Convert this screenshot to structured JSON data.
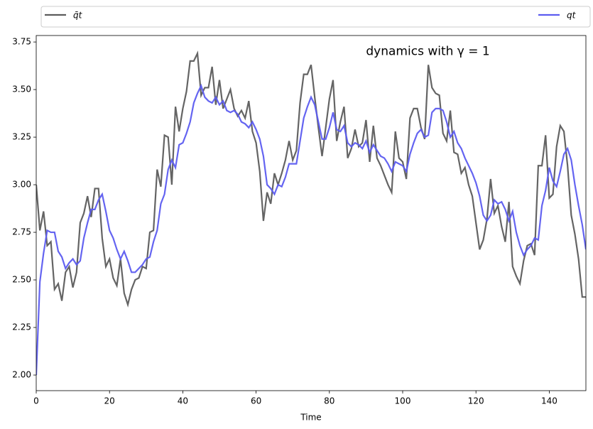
{
  "chart_data": {
    "type": "line",
    "annotation": {
      "text": "dynamics with γ = 1",
      "x": 90,
      "y": 3.7
    },
    "xlabel": "Time",
    "xlim": [
      0,
      150
    ],
    "ylim": [
      1.918,
      3.784
    ],
    "xticks": [
      0,
      20,
      40,
      60,
      80,
      100,
      120,
      140
    ],
    "yticks": [
      {
        "value": 2,
        "label": "2.00"
      },
      2.25,
      {
        "value": 2.5,
        "label": "2.50"
      },
      2.75,
      {
        "value": 3,
        "label": "3.00"
      },
      3.25,
      {
        "value": 3.5,
        "label": "3.50"
      },
      3.75
    ],
    "legend": "top-expand",
    "x": [
      0,
      1,
      2,
      3,
      4,
      5,
      6,
      7,
      8,
      9,
      10,
      11,
      12,
      13,
      14,
      15,
      16,
      17,
      18,
      19,
      20,
      21,
      22,
      23,
      24,
      25,
      26,
      27,
      28,
      29,
      30,
      31,
      32,
      33,
      34,
      35,
      36,
      37,
      38,
      39,
      40,
      41,
      42,
      43,
      44,
      45,
      46,
      47,
      48,
      49,
      50,
      51,
      52,
      53,
      54,
      55,
      56,
      57,
      58,
      59,
      60,
      61,
      62,
      63,
      64,
      65,
      66,
      67,
      68,
      69,
      70,
      71,
      72,
      73,
      74,
      75,
      76,
      77,
      78,
      79,
      80,
      81,
      82,
      83,
      84,
      85,
      86,
      87,
      88,
      89,
      90,
      91,
      92,
      93,
      94,
      95,
      96,
      97,
      98,
      99,
      100,
      101,
      102,
      103,
      104,
      105,
      106,
      107,
      108,
      109,
      110,
      111,
      112,
      113,
      114,
      115,
      116,
      117,
      118,
      119,
      120,
      121,
      122,
      123,
      124,
      125,
      126,
      127,
      128,
      129,
      130,
      131,
      132,
      133,
      134,
      135,
      136,
      137,
      138,
      139,
      140,
      141,
      142,
      143,
      144,
      145,
      146,
      147,
      148,
      149,
      150
    ],
    "series": [
      {
        "name": "q̄t",
        "color": "#5c5c5c",
        "values": [
          3.0,
          2.76,
          2.86,
          2.68,
          2.7,
          2.45,
          2.48,
          2.39,
          2.54,
          2.57,
          2.46,
          2.54,
          2.8,
          2.85,
          2.94,
          2.83,
          2.98,
          2.98,
          2.72,
          2.57,
          2.61,
          2.51,
          2.47,
          2.61,
          2.43,
          2.37,
          2.45,
          2.5,
          2.51,
          2.57,
          2.56,
          2.75,
          2.76,
          3.08,
          2.99,
          3.26,
          3.25,
          3.0,
          3.41,
          3.28,
          3.4,
          3.49,
          3.65,
          3.65,
          3.69,
          3.47,
          3.51,
          3.51,
          3.62,
          3.42,
          3.55,
          3.4,
          3.45,
          3.5,
          3.4,
          3.36,
          3.39,
          3.35,
          3.44,
          3.28,
          3.22,
          3.07,
          2.81,
          2.96,
          2.9,
          3.06,
          3.0,
          3.06,
          3.13,
          3.23,
          3.13,
          3.18,
          3.43,
          3.58,
          3.58,
          3.63,
          3.46,
          3.3,
          3.15,
          3.3,
          3.45,
          3.55,
          3.23,
          3.33,
          3.41,
          3.14,
          3.19,
          3.29,
          3.2,
          3.22,
          3.34,
          3.12,
          3.31,
          3.14,
          3.1,
          3.05,
          3.0,
          2.96,
          3.28,
          3.14,
          3.12,
          3.03,
          3.35,
          3.4,
          3.4,
          3.3,
          3.24,
          3.63,
          3.51,
          3.48,
          3.47,
          3.27,
          3.23,
          3.39,
          3.17,
          3.16,
          3.06,
          3.09,
          3.0,
          2.94,
          2.8,
          2.66,
          2.71,
          2.82,
          3.03,
          2.85,
          2.89,
          2.78,
          2.7,
          2.91,
          2.57,
          2.52,
          2.48,
          2.6,
          2.68,
          2.69,
          2.63,
          3.1,
          3.1,
          3.26,
          2.93,
          2.95,
          3.2,
          3.31,
          3.28,
          3.1,
          2.84,
          2.74,
          2.61,
          2.41,
          2.41
        ]
      },
      {
        "name": "qt",
        "color": "#5c5cf0",
        "values": [
          2.0,
          2.49,
          2.64,
          2.76,
          2.75,
          2.75,
          2.65,
          2.62,
          2.56,
          2.59,
          2.61,
          2.58,
          2.6,
          2.72,
          2.8,
          2.87,
          2.87,
          2.92,
          2.95,
          2.86,
          2.76,
          2.72,
          2.66,
          2.61,
          2.65,
          2.6,
          2.54,
          2.54,
          2.56,
          2.58,
          2.61,
          2.62,
          2.7,
          2.76,
          2.9,
          2.95,
          3.08,
          3.13,
          3.09,
          3.21,
          3.22,
          3.27,
          3.33,
          3.43,
          3.48,
          3.52,
          3.46,
          3.44,
          3.43,
          3.46,
          3.42,
          3.44,
          3.39,
          3.38,
          3.39,
          3.37,
          3.33,
          3.32,
          3.3,
          3.33,
          3.29,
          3.24,
          3.15,
          3.0,
          2.98,
          2.95,
          3.0,
          2.99,
          3.04,
          3.11,
          3.11,
          3.11,
          3.23,
          3.35,
          3.41,
          3.46,
          3.42,
          3.33,
          3.24,
          3.24,
          3.3,
          3.38,
          3.29,
          3.28,
          3.31,
          3.22,
          3.2,
          3.22,
          3.21,
          3.19,
          3.23,
          3.17,
          3.21,
          3.18,
          3.15,
          3.14,
          3.11,
          3.07,
          3.12,
          3.11,
          3.1,
          3.07,
          3.16,
          3.22,
          3.27,
          3.29,
          3.25,
          3.26,
          3.38,
          3.4,
          3.4,
          3.39,
          3.33,
          3.25,
          3.28,
          3.22,
          3.19,
          3.14,
          3.1,
          3.06,
          3.01,
          2.94,
          2.84,
          2.81,
          2.84,
          2.92,
          2.9,
          2.91,
          2.87,
          2.81,
          2.86,
          2.75,
          2.68,
          2.63,
          2.66,
          2.68,
          2.72,
          2.71,
          2.89,
          2.97,
          3.09,
          3.02,
          2.99,
          3.07,
          3.16,
          3.19,
          3.13,
          3.0,
          2.89,
          2.79,
          2.66
        ]
      }
    ]
  }
}
